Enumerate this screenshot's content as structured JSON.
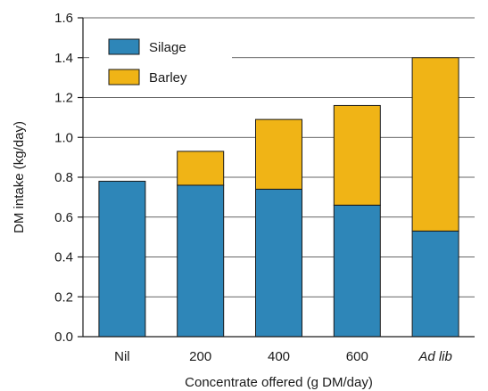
{
  "chart_data": {
    "type": "bar",
    "stacked": true,
    "categories": [
      "Nil",
      "200",
      "400",
      "600",
      "Ad lib"
    ],
    "italic_categories": [
      "Ad lib"
    ],
    "series": [
      {
        "name": "Silage",
        "color": "#2e86b8",
        "values": [
          0.78,
          0.76,
          0.74,
          0.66,
          0.53
        ]
      },
      {
        "name": "Barley",
        "color": "#f0b416",
        "values": [
          0.0,
          0.17,
          0.35,
          0.5,
          0.87
        ]
      }
    ],
    "xlabel": "Concentrate offered (g DM/day)",
    "ylabel": "DM intake (kg/day)",
    "ylim": [
      0,
      1.6
    ],
    "yticks": [
      "0.0",
      "0.2",
      "0.4",
      "0.6",
      "0.8",
      "1.0",
      "1.2",
      "1.4",
      "1.6"
    ],
    "grid": true,
    "legend_position": "top-left"
  }
}
